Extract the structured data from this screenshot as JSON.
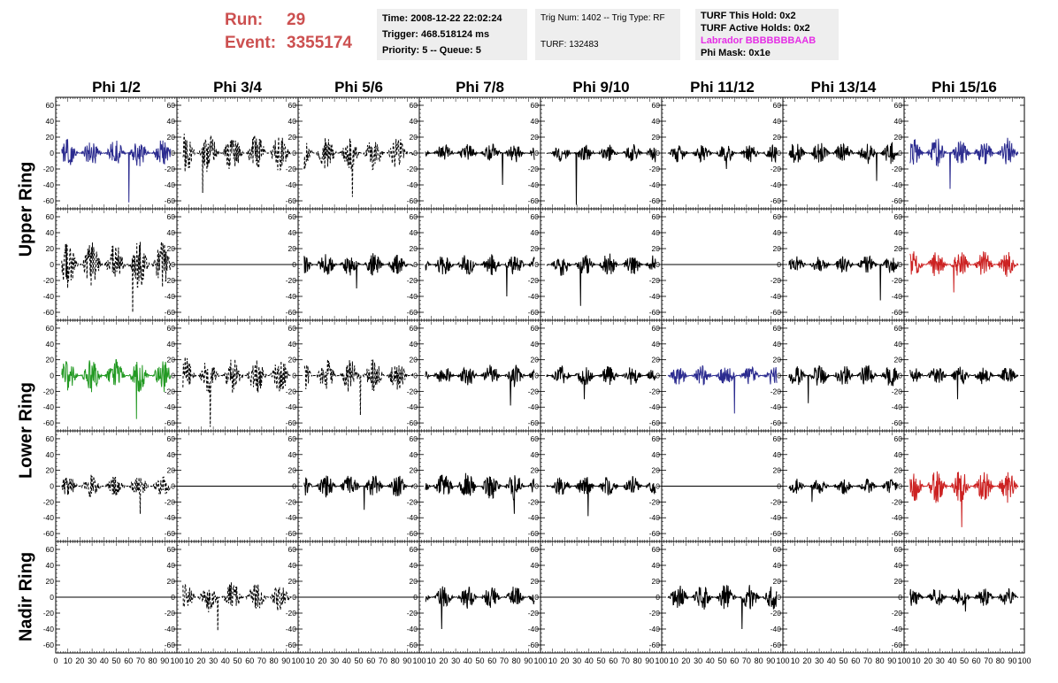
{
  "header": {
    "run_label": "Run:",
    "run_value": "29",
    "event_label": "Event:",
    "event_value": "3355174",
    "time": "Time: 2008-12-22 22:02:24",
    "trigger": "Trigger: 468.518124 ms",
    "priority": "Priority: 5 -- Queue: 5",
    "trig_num": "Trig Num: 1402 -- Trig Type: RF",
    "turf": "TURF: 132483",
    "turf_this_hold": "TURF This Hold: 0x2",
    "turf_active_holds": "TURF Active Holds: 0x2",
    "labrador": "Labrador BBBBBBBAAB",
    "phi_mask": "Phi Mask: 0x1e"
  },
  "colors": {
    "run_text": "#cc5050",
    "labrador_text": "#e52fe5",
    "info_box_bg": "#eeeeee"
  },
  "ring_labels": [
    "Upper Ring",
    "Lower Ring",
    "Nadir Ring"
  ],
  "chart_data": {
    "type": "line",
    "title": "",
    "columns": [
      "Phi 1/2",
      "Phi 3/4",
      "Phi 5/6",
      "Phi 7/8",
      "Phi 9/10",
      "Phi 11/12",
      "Phi 13/14",
      "Phi 15/16"
    ],
    "row_groups": [
      "Upper Ring",
      "Upper Ring",
      "Lower Ring",
      "Lower Ring",
      "Nadir Ring"
    ],
    "xlim": [
      0,
      100
    ],
    "ylim": [
      -70,
      70
    ],
    "y_ticks": [
      -60,
      -40,
      -20,
      0,
      20,
      40,
      60
    ],
    "x_ticks": [
      0,
      10,
      20,
      30,
      40,
      50,
      60,
      70,
      80,
      90,
      100
    ],
    "grid": false,
    "series_colors": {
      "black": "#000000",
      "blue": "#2b2b8f",
      "red": "#cc2222",
      "green": "#229922"
    },
    "panels": [
      [
        {
          "style": "solid",
          "color": "#2b2b8f",
          "amplitude": 15,
          "spike": -62
        },
        {
          "style": "dashed",
          "color": "#000000",
          "amplitude": 22,
          "spike": -50
        },
        {
          "style": "dashed",
          "color": "#000000",
          "amplitude": 18,
          "spike": -55
        },
        {
          "style": "solid",
          "color": "#000000",
          "amplitude": 10,
          "spike": -40
        },
        {
          "style": "solid",
          "color": "#000000",
          "amplitude": 10,
          "spike": -65
        },
        {
          "style": "solid",
          "color": "#000000",
          "amplitude": 10,
          "spike": -20
        },
        {
          "style": "solid",
          "color": "#000000",
          "amplitude": 12,
          "spike": -35
        },
        {
          "style": "solid",
          "color": "#2b2b8f",
          "amplitude": 16,
          "spike": -45
        }
      ],
      [
        {
          "style": "dashed",
          "color": "#000000",
          "amplitude": 25,
          "spike": -60
        },
        {
          "style": "flat",
          "color": "#000000",
          "amplitude": 0,
          "spike": 0
        },
        {
          "style": "solid",
          "color": "#000000",
          "amplitude": 12,
          "spike": -30
        },
        {
          "style": "solid",
          "color": "#000000",
          "amplitude": 12,
          "spike": -40
        },
        {
          "style": "solid",
          "color": "#000000",
          "amplitude": 12,
          "spike": -52
        },
        {
          "style": "flat",
          "color": "#000000",
          "amplitude": 0,
          "spike": 0
        },
        {
          "style": "solid",
          "color": "#000000",
          "amplitude": 10,
          "spike": -45
        },
        {
          "style": "solid",
          "color": "#cc2222",
          "amplitude": 14,
          "spike": -35
        }
      ],
      [
        {
          "style": "solid",
          "color": "#229922",
          "amplitude": 18,
          "spike": -55
        },
        {
          "style": "dashed",
          "color": "#000000",
          "amplitude": 20,
          "spike": -65
        },
        {
          "style": "dashed",
          "color": "#000000",
          "amplitude": 18,
          "spike": -50
        },
        {
          "style": "solid",
          "color": "#000000",
          "amplitude": 12,
          "spike": -38
        },
        {
          "style": "solid",
          "color": "#000000",
          "amplitude": 11,
          "spike": -30
        },
        {
          "style": "solid",
          "color": "#2b2b8f",
          "amplitude": 11,
          "spike": -48
        },
        {
          "style": "solid",
          "color": "#000000",
          "amplitude": 12,
          "spike": -35
        },
        {
          "style": "solid",
          "color": "#000000",
          "amplitude": 10,
          "spike": -30
        }
      ],
      [
        {
          "style": "dashed",
          "color": "#000000",
          "amplitude": 12,
          "spike": -35
        },
        {
          "style": "flat",
          "color": "#000000",
          "amplitude": 0,
          "spike": 0
        },
        {
          "style": "solid",
          "color": "#000000",
          "amplitude": 12,
          "spike": -30
        },
        {
          "style": "solid",
          "color": "#000000",
          "amplitude": 15,
          "spike": -35
        },
        {
          "style": "solid",
          "color": "#000000",
          "amplitude": 11,
          "spike": -38
        },
        {
          "style": "flat",
          "color": "#000000",
          "amplitude": 0,
          "spike": 0
        },
        {
          "style": "solid",
          "color": "#000000",
          "amplitude": 8,
          "spike": -20
        },
        {
          "style": "solid",
          "color": "#cc2222",
          "amplitude": 18,
          "spike": -52
        }
      ],
      [
        {
          "style": "flat",
          "color": "#000000",
          "amplitude": 0,
          "spike": 0
        },
        {
          "style": "dashed",
          "color": "#000000",
          "amplitude": 16,
          "spike": -42
        },
        {
          "style": "flat",
          "color": "#000000",
          "amplitude": 0,
          "spike": 0
        },
        {
          "style": "solid",
          "color": "#000000",
          "amplitude": 12,
          "spike": -40
        },
        {
          "style": "flat",
          "color": "#000000",
          "amplitude": 0,
          "spike": 0
        },
        {
          "style": "solid",
          "color": "#000000",
          "amplitude": 14,
          "spike": -40
        },
        {
          "style": "flat",
          "color": "#000000",
          "amplitude": 0,
          "spike": 0
        },
        {
          "style": "solid",
          "color": "#000000",
          "amplitude": 10,
          "spike": -18
        }
      ]
    ]
  }
}
